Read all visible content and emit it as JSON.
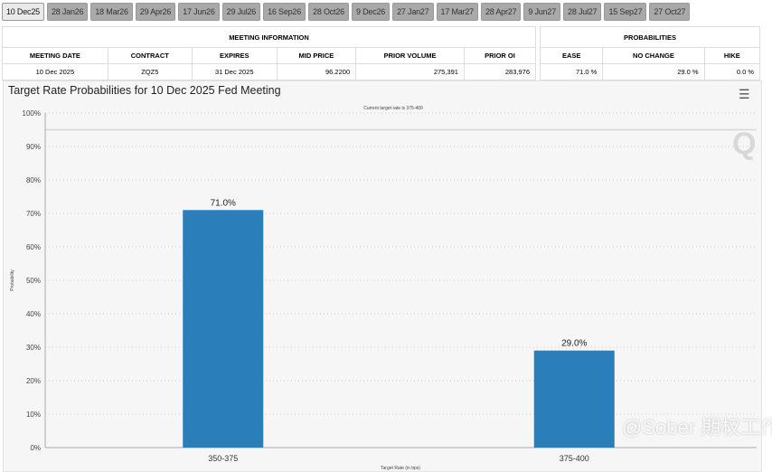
{
  "tabs": [
    "10 Dec25",
    "28 Jan26",
    "18 Mar26",
    "29 Apr26",
    "17 Jun26",
    "29 Jul26",
    "16 Sep26",
    "28 Oct26",
    "9 Dec26",
    "27 Jan27",
    "17 Mar27",
    "28 Apr27",
    "9 Jun27",
    "28 Jul27",
    "15 Sep27",
    "27 Oct27"
  ],
  "meeting_info": {
    "header": "MEETING INFORMATION",
    "columns": [
      "MEETING DATE",
      "CONTRACT",
      "EXPIRES",
      "MID PRICE",
      "PRIOR VOLUME",
      "PRIOR OI"
    ],
    "row": [
      "10 Dec 2025",
      "ZQZ5",
      "31 Dec 2025",
      "96.2200",
      "275,391",
      "283,976"
    ]
  },
  "probabilities": {
    "header": "PROBABILITIES",
    "columns": [
      "EASE",
      "NO CHANGE",
      "HIKE"
    ],
    "row": [
      "71.0 %",
      "29.0 %",
      "0.0 %"
    ]
  },
  "menu_icon": "hamburger-menu-icon",
  "watermark": "@Sober 期权工作室",
  "chart_data": {
    "type": "bar",
    "title": "Target Rate Probabilities for 10 Dec 2025 Fed Meeting",
    "subtitle": "Current target rate is 375-400",
    "xlabel": "Target Rate (in bps)",
    "ylabel": "Probability",
    "categories": [
      "350-375",
      "375-400"
    ],
    "values": [
      71.0,
      29.0
    ],
    "data_labels": [
      "71.0%",
      "29.0%"
    ],
    "ylim": [
      0,
      100
    ],
    "yticks": [
      "0%",
      "10%",
      "20%",
      "30%",
      "40%",
      "50%",
      "60%",
      "70%",
      "80%",
      "90%",
      "100%"
    ],
    "reference_line": 95,
    "grid": true,
    "bar_color": "#2a7fba"
  }
}
